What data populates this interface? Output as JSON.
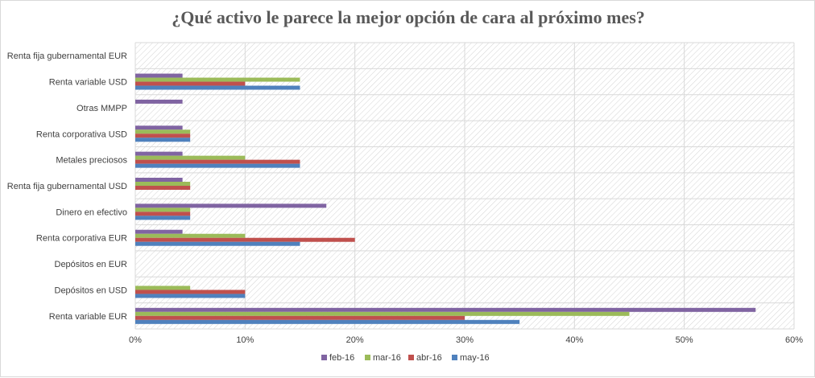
{
  "chart_data": {
    "type": "bar",
    "orientation": "horizontal",
    "title": "¿Qué activo le parece la mejor opción de cara al próximo mes?",
    "categories": [
      "Renta variable EUR",
      "Depósitos en USD",
      "Depósitos en EUR",
      "Renta corporativa EUR",
      "Dinero en efectivo",
      "Renta fija gubernamental USD",
      "Metales preciosos",
      "Renta corporativa USD",
      "Otras MMPP",
      "Renta variable USD",
      "Renta fija gubernamental EUR"
    ],
    "series": [
      {
        "name": "feb-16",
        "color": "#8064A2",
        "values": [
          56.5,
          0,
          0,
          4.3,
          17.4,
          4.3,
          4.3,
          4.3,
          4.3,
          4.3,
          0
        ]
      },
      {
        "name": "mar-16",
        "color": "#9BBB59",
        "values": [
          45,
          5,
          0,
          10,
          5,
          5,
          10,
          5,
          0,
          15,
          0
        ]
      },
      {
        "name": "abr-16",
        "color": "#C0504D",
        "values": [
          30,
          10,
          0,
          20,
          5,
          5,
          15,
          5,
          0,
          10,
          0
        ]
      },
      {
        "name": "may-16",
        "color": "#4F81BD",
        "values": [
          35,
          10,
          0,
          15,
          5,
          0,
          15,
          5,
          0,
          15,
          0
        ]
      }
    ],
    "xlim": [
      0,
      60
    ],
    "xticks": [
      0,
      10,
      20,
      30,
      40,
      50,
      60
    ],
    "tick_suffix": "%",
    "legend": [
      "feb-16",
      "mar-16",
      "abr-16",
      "may-16"
    ],
    "legend_position": "bottom",
    "grid": true
  }
}
